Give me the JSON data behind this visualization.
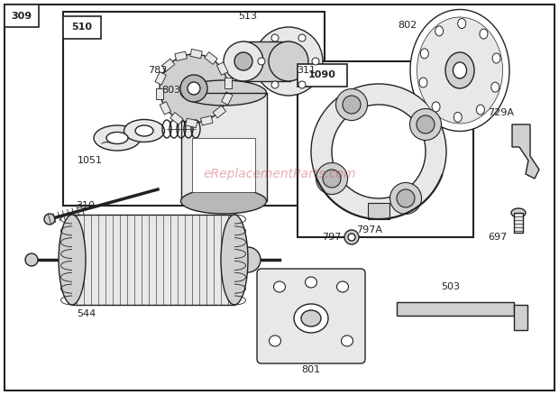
{
  "bg_color": "#ffffff",
  "border_color": "#222222",
  "line_color": "#222222",
  "fill_light": "#e8e8e8",
  "fill_mid": "#d0d0d0",
  "fill_dark": "#b8b8b8",
  "label_fs": 8,
  "fig_width": 6.2,
  "fig_height": 4.38,
  "dpi": 100,
  "watermark": "eReplacementParts.com",
  "wm_color": "#cc3333",
  "wm_alpha": 0.4
}
